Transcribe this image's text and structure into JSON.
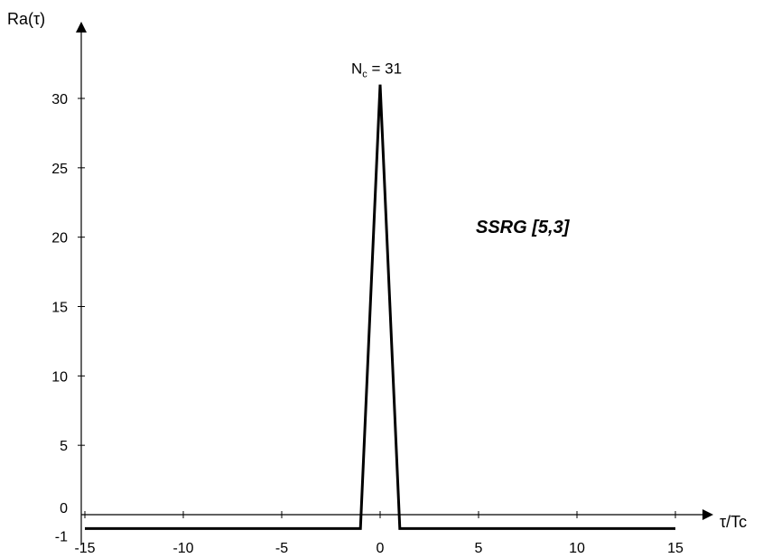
{
  "chart_data": {
    "type": "line",
    "xlabel": "τ/Tc",
    "ylabel": "Ra(τ)",
    "annotation": {
      "text": "N",
      "sub": "c",
      "suffix": " = 31"
    },
    "series_label": "SSRG [5,3]",
    "xlim": [
      -15,
      15
    ],
    "ylim": [
      -1,
      31
    ],
    "x_ticks": [
      -15,
      -10,
      -5,
      0,
      5,
      10,
      15
    ],
    "y_ticks": [
      -1,
      0,
      5,
      10,
      15,
      20,
      25,
      30
    ],
    "grid": false,
    "series": [
      {
        "x": [
          -15,
          -1,
          0,
          1,
          15
        ],
        "y": [
          -1,
          -1,
          31,
          -1,
          -1
        ]
      }
    ]
  }
}
